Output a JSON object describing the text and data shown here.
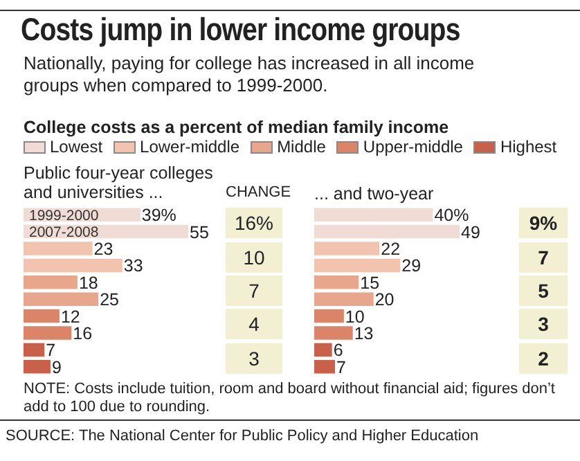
{
  "chart_data": [
    {
      "type": "bar",
      "orientation": "horizontal",
      "title": "Costs jump in lower income groups",
      "subtitle": "Nationally, paying for college has increased in all income groups when compared to 1999-2000.",
      "categories": [
        "1999-2000",
        "2007-2008",
        null,
        null,
        null,
        null,
        null,
        null,
        null,
        null
      ],
      "series": [
        {
          "name": "Lowest",
          "color": "#f0dcd4",
          "values": [
            39,
            55,
            null,
            null,
            null,
            null,
            null,
            null,
            null,
            null
          ],
          "value_labels": [
            "39%",
            "55",
            null,
            null,
            null,
            null,
            null,
            null,
            null,
            null
          ]
        },
        {
          "name": "Lower-middle",
          "color": "#f2c4b0",
          "values": [
            null,
            null,
            23,
            33,
            null,
            null,
            null,
            null,
            null,
            null
          ],
          "value_labels": [
            null,
            null,
            "23",
            "33",
            null,
            null,
            null,
            null,
            null,
            null
          ]
        },
        {
          "name": "Middle",
          "color": "#e8a68c",
          "values": [
            null,
            null,
            null,
            null,
            18,
            25,
            null,
            null,
            null,
            null
          ],
          "value_labels": [
            null,
            null,
            null,
            null,
            "18",
            "25",
            null,
            null,
            null,
            null
          ]
        },
        {
          "name": "Upper-middle",
          "color": "#dc8468",
          "values": [
            null,
            null,
            null,
            null,
            null,
            null,
            12,
            16,
            null,
            null
          ],
          "value_labels": [
            null,
            null,
            null,
            null,
            null,
            null,
            "12",
            "16",
            null,
            null
          ]
        },
        {
          "name": "Highest",
          "color": "#c8604a",
          "values": [
            null,
            null,
            null,
            null,
            null,
            null,
            null,
            null,
            7,
            9
          ],
          "value_labels": [
            null,
            null,
            null,
            null,
            null,
            null,
            null,
            null,
            "7",
            "9"
          ]
        }
      ],
      "legend": "top",
      "tick_labels": "y",
      "annotations": [
        "College costs as a percent of median family income",
        "Public four-year colleges and universities ...",
        "CHANGE",
        "NOTE: Costs include tuition, room and board without financial aid; figures don’t add to 100 due to rounding.",
        "SOURCE: The National Center for Public Policy and Higher Education",
        "16%",
        "10",
        "7",
        "4",
        "3"
      ]
    },
    {
      "type": "bar",
      "orientation": "horizontal",
      "title": "... and two-year",
      "categories": [
        null,
        null,
        null,
        null,
        null,
        null,
        null,
        null,
        null,
        null
      ],
      "series": [
        {
          "color": "#f0dcd4",
          "values": [
            40,
            49,
            null,
            null,
            null,
            null,
            null,
            null,
            null,
            null
          ],
          "value_labels": [
            "40%",
            "49",
            null,
            null,
            null,
            null,
            null,
            null,
            null,
            null
          ]
        },
        {
          "color": "#f2c4b0",
          "values": [
            null,
            null,
            22,
            29,
            null,
            null,
            null,
            null,
            null,
            null
          ],
          "value_labels": [
            null,
            null,
            "22",
            "29",
            null,
            null,
            null,
            null,
            null,
            null
          ]
        },
        {
          "color": "#e8a68c",
          "values": [
            null,
            null,
            null,
            null,
            15,
            20,
            null,
            null,
            null,
            null
          ],
          "value_labels": [
            null,
            null,
            null,
            null,
            "15",
            "20",
            null,
            null,
            null,
            null
          ]
        },
        {
          "color": "#dc8468",
          "values": [
            null,
            null,
            null,
            null,
            null,
            null,
            10,
            13,
            null,
            null
          ],
          "value_labels": [
            null,
            null,
            null,
            null,
            null,
            null,
            "10",
            "13",
            null,
            null
          ]
        },
        {
          "color": "#c8604a",
          "values": [
            null,
            null,
            null,
            null,
            null,
            null,
            null,
            null,
            6,
            7
          ],
          "value_labels": [
            null,
            null,
            null,
            null,
            null,
            null,
            null,
            null,
            "6",
            "7"
          ]
        }
      ],
      "tick_labels": false,
      "annotations": [
        "9%",
        "7",
        "5",
        "3",
        "2"
      ]
    }
  ]
}
